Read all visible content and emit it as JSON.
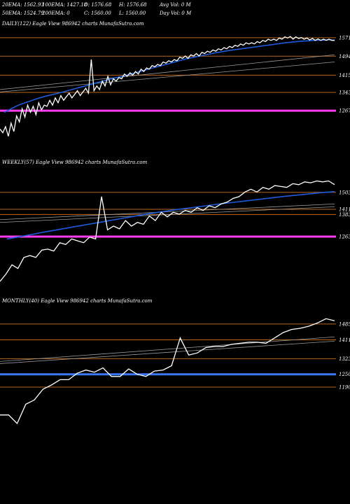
{
  "header": {
    "row1": [
      "20EMA: 1562.93",
      "100EMA: 1427.18",
      "O: 1576.68",
      "H: 1576.68",
      "Avg Vol: 0  M"
    ],
    "row2": [
      "50EMA: 1524.79",
      "200EMA: 0",
      "C: 1560.00",
      "L: 1560.00",
      "Day Vol: 0  M"
    ]
  },
  "colors": {
    "background": "#000000",
    "price": "#ffffff",
    "ema": "#1e5bdc",
    "orange": "#b8671f",
    "magenta": "#ff3df0",
    "blue_support": "#3a78ff",
    "trend": "#9a9a9a"
  },
  "chart_data": [
    {
      "type": "line",
      "title": "DAILY(122) Eagle  View  986942  charts MunafaSutra.com",
      "ylim": [
        1130,
        1600
      ],
      "levels": [
        {
          "value": 1571,
          "label": "1571",
          "color": "orange"
        },
        {
          "value": 1494,
          "label": "1494",
          "color": "orange"
        },
        {
          "value": 1415,
          "label": "1415",
          "color": "orange"
        },
        {
          "value": 1343,
          "label": "1343",
          "color": "orange"
        },
        {
          "value": 1267,
          "label": "1267",
          "color": "magenta"
        }
      ],
      "trendlines": [
        [
          1355,
          1500
        ],
        [
          1345,
          1470
        ]
      ],
      "price": [
        1190,
        1175,
        1200,
        1160,
        1215,
        1180,
        1245,
        1220,
        1275,
        1240,
        1290,
        1260,
        1285,
        1250,
        1300,
        1270,
        1290,
        1285,
        1310,
        1290,
        1320,
        1300,
        1330,
        1310,
        1325,
        1340,
        1320,
        1335,
        1350,
        1330,
        1345,
        1360,
        1340,
        1480,
        1350,
        1370,
        1355,
        1390,
        1370,
        1410,
        1375,
        1400,
        1390,
        1405,
        1400,
        1420,
        1410,
        1425,
        1415,
        1430,
        1420,
        1440,
        1430,
        1445,
        1440,
        1455,
        1450,
        1460,
        1455,
        1470,
        1465,
        1475,
        1470,
        1480,
        1475,
        1490,
        1485,
        1495,
        1485,
        1500,
        1495,
        1505,
        1495,
        1510,
        1505,
        1515,
        1510,
        1520,
        1515,
        1525,
        1520,
        1530,
        1525,
        1535,
        1530,
        1540,
        1535,
        1545,
        1540,
        1550,
        1545,
        1550,
        1545,
        1555,
        1550,
        1560,
        1555,
        1565,
        1560,
        1565,
        1560,
        1570,
        1565,
        1575,
        1570,
        1576,
        1565,
        1575,
        1568,
        1572,
        1565,
        1570,
        1562,
        1568,
        1560,
        1566,
        1560,
        1565,
        1560,
        1565,
        1560,
        1560
      ],
      "ema": [
        1260,
        1275,
        1290,
        1300,
        1310,
        1320,
        1328,
        1335,
        1342,
        1350,
        1358,
        1366,
        1374,
        1382,
        1390,
        1398,
        1405,
        1412,
        1420,
        1428,
        1436,
        1444,
        1452,
        1460,
        1468,
        1476,
        1484,
        1490,
        1496,
        1502,
        1508,
        1513,
        1518,
        1522,
        1526,
        1530,
        1534,
        1538,
        1542,
        1546,
        1550,
        1553,
        1556,
        1558,
        1560,
        1561,
        1562,
        1562
      ]
    },
    {
      "type": "line",
      "title": "WEEKLY(57) Eagle  View  986942  charts MunafaSutra.com",
      "ylim": [
        1020,
        1620
      ],
      "levels": [
        {
          "value": 1503,
          "label": "1503",
          "color": "orange"
        },
        {
          "value": 1411,
          "label": "1411",
          "color": "orange"
        },
        {
          "value": 1383,
          "label": "1383",
          "color": "orange"
        },
        {
          "value": 1263,
          "label": "1263",
          "color": "magenta"
        }
      ],
      "trendlines": [
        [
          1355,
          1440
        ],
        [
          1340,
          1425
        ]
      ],
      "price": [
        1020,
        1060,
        1110,
        1090,
        1150,
        1160,
        1150,
        1190,
        1195,
        1185,
        1230,
        1220,
        1250,
        1240,
        1230,
        1260,
        1250,
        1480,
        1300,
        1320,
        1305,
        1350,
        1320,
        1340,
        1330,
        1375,
        1350,
        1395,
        1370,
        1395,
        1385,
        1405,
        1395,
        1420,
        1405,
        1430,
        1420,
        1440,
        1450,
        1470,
        1480,
        1505,
        1520,
        1505,
        1530,
        1520,
        1540,
        1535,
        1530,
        1550,
        1545,
        1560,
        1555,
        1565,
        1560,
        1565,
        1545
      ],
      "ema": [
        1250,
        1262,
        1275,
        1288,
        1300,
        1312,
        1324,
        1336,
        1348,
        1360,
        1372,
        1384,
        1395,
        1405,
        1414,
        1423,
        1432,
        1441,
        1449,
        1457,
        1465,
        1473,
        1481,
        1488,
        1495,
        1502,
        1507
      ]
    },
    {
      "type": "line",
      "title": "MONTHLY(40) Eagle  View  986942  charts MunafaSutra.com",
      "ylim": [
        1020,
        1560
      ],
      "levels": [
        {
          "value": 1485,
          "label": "1485",
          "color": "orange"
        },
        {
          "value": 1411,
          "label": "1411",
          "color": "orange"
        },
        {
          "value": 1323,
          "label": "1323",
          "color": "orange"
        },
        {
          "value": 1250,
          "label": "1250",
          "color": "blue_support"
        },
        {
          "value": 1190,
          "label": "1190",
          "color": "orange"
        }
      ],
      "trendlines": [
        [
          1310,
          1425
        ],
        [
          1300,
          1405
        ]
      ],
      "price": [
        1060,
        1060,
        1020,
        1110,
        1130,
        1180,
        1200,
        1225,
        1225,
        1255,
        1270,
        1260,
        1280,
        1240,
        1240,
        1275,
        1250,
        1240,
        1265,
        1270,
        1290,
        1420,
        1340,
        1350,
        1375,
        1380,
        1380,
        1390,
        1395,
        1400,
        1400,
        1395,
        1420,
        1445,
        1460,
        1465,
        1475,
        1490,
        1510,
        1500
      ]
    }
  ]
}
